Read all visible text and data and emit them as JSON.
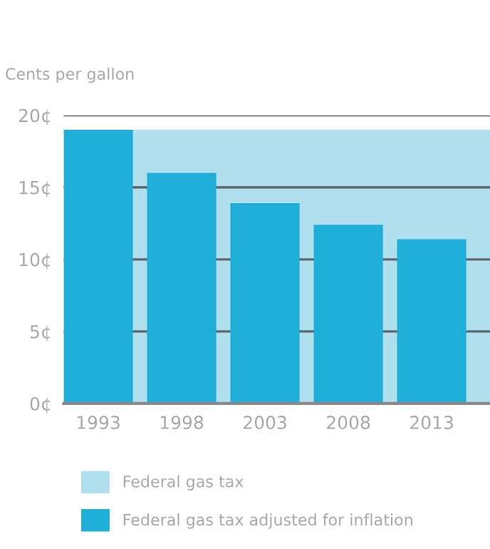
{
  "chart_data": {
    "type": "bar",
    "ylabel": "Cents per gallon",
    "categories": [
      "1993",
      "1998",
      "2003",
      "2008",
      "2013"
    ],
    "bands": [
      {
        "axis": "y",
        "from": 0,
        "to": 19,
        "label": "Federal gas tax",
        "color": "#b0e0ee"
      }
    ],
    "series": [
      {
        "name": "Federal gas tax adjusted for inflation",
        "color": "#1eaed8",
        "values": [
          19,
          16,
          13.9,
          12.4,
          11.4
        ]
      }
    ],
    "ylim": [
      0,
      20
    ],
    "yticks": [
      {
        "value": 0,
        "label": "0¢"
      },
      {
        "value": 5,
        "label": "5¢"
      },
      {
        "value": 10,
        "label": "10¢"
      },
      {
        "value": 15,
        "label": "15¢"
      },
      {
        "value": 20,
        "label": "20¢"
      }
    ],
    "grid": "y",
    "legend": "bottom"
  }
}
